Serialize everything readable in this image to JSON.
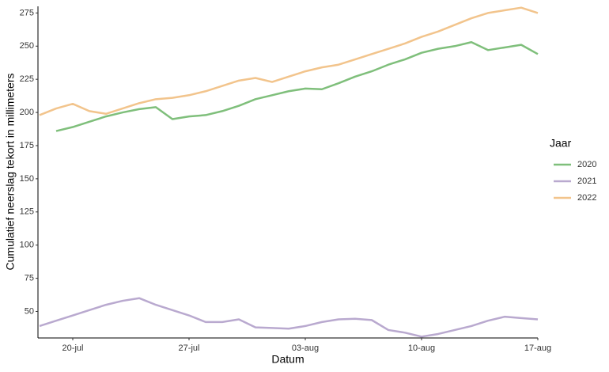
{
  "chart_data": {
    "type": "line",
    "xlabel": "Datum",
    "ylabel": "Cumulatief neerslag tekort in millimeters",
    "legend_title": "Jaar",
    "legend_position": "right",
    "x": [
      "18-jul",
      "19-jul",
      "20-jul",
      "21-jul",
      "22-jul",
      "23-jul",
      "24-jul",
      "25-jul",
      "26-jul",
      "27-jul",
      "28-jul",
      "29-jul",
      "30-jul",
      "31-jul",
      "01-aug",
      "02-aug",
      "03-aug",
      "04-aug",
      "05-aug",
      "06-aug",
      "07-aug",
      "08-aug",
      "09-aug",
      "10-aug",
      "11-aug",
      "12-aug",
      "13-aug",
      "14-aug",
      "15-aug",
      "16-aug",
      "17-aug"
    ],
    "xticks": [
      "20-jul",
      "27-jul",
      "03-aug",
      "10-aug",
      "17-aug"
    ],
    "ylim": [
      30,
      280
    ],
    "yticks": [
      50,
      75,
      100,
      125,
      150,
      175,
      200,
      225,
      250,
      275
    ],
    "grid": false,
    "series": [
      {
        "name": "2020",
        "color": "#7fbf7b",
        "values": [
          null,
          186,
          189,
          193,
          197,
          200,
          202.5,
          204,
          195,
          197,
          198,
          201,
          205,
          210,
          213,
          216,
          218,
          217.5,
          222,
          227,
          231,
          236,
          240,
          245,
          248,
          250,
          253,
          247,
          249,
          251,
          244
        ]
      },
      {
        "name": "2021",
        "color": "#b9a9cf",
        "values": [
          39,
          43,
          47,
          51,
          55,
          58,
          60,
          55,
          51,
          47,
          42,
          42,
          44,
          38,
          37.5,
          37,
          39,
          42,
          44,
          44.5,
          43.5,
          36,
          34,
          31,
          33,
          36,
          39,
          43,
          46,
          45,
          44
        ]
      },
      {
        "name": "2022",
        "color": "#f2c48c",
        "values": [
          198,
          203,
          206.5,
          201,
          199,
          203,
          207,
          210,
          211,
          213,
          216,
          220,
          224,
          226,
          223,
          227,
          231,
          234,
          236,
          240,
          244,
          248,
          252,
          257,
          261,
          266,
          271,
          275,
          277,
          279,
          275
        ]
      }
    ]
  }
}
